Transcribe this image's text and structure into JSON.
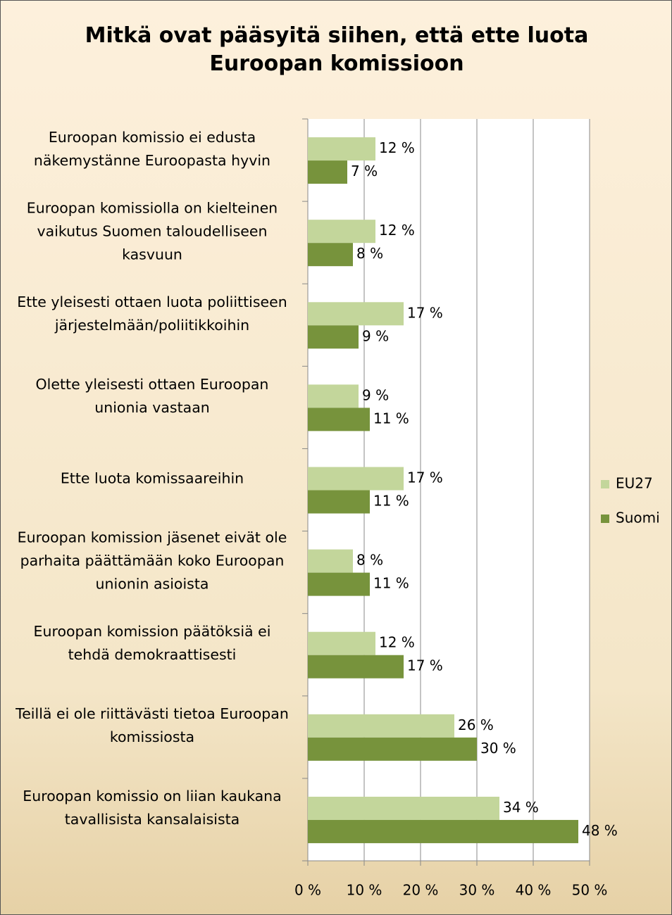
{
  "chart_data": {
    "type": "bar",
    "orientation": "horizontal",
    "title": "Mitkä ovat pääsyitä siihen, että ette luota Euroopan komissioon",
    "categories": [
      "Euroopan komissio ei edusta näkemystänne Euroopasta hyvin",
      "Euroopan komissiolla on kielteinen vaikutus Suomen taloudelliseen kasvuun",
      "Ette yleisesti ottaen luota poliittiseen järjestelmään/poliitikkoihin",
      "Olette yleisesti ottaen Euroopan unionia vastaan",
      "Ette luota komissaareihin",
      "Euroopan komission jäsenet eivät ole parhaita päättämään koko Euroopan unionin asioista",
      "Euroopan komission päätöksiä ei tehdä demokraattisesti",
      "Teillä ei ole riittävästi tietoa Euroopan komissiosta",
      "Euroopan komissio on liian kaukana tavallisista kansalaisista"
    ],
    "series": [
      {
        "name": "EU27",
        "color": "#c3d69b",
        "values": [
          12,
          12,
          17,
          9,
          17,
          8,
          12,
          26,
          34
        ],
        "value_labels": [
          "12 %",
          "12 %",
          "17 %",
          "9 %",
          "17 %",
          "8 %",
          "12 %",
          "26 %",
          "34 %"
        ]
      },
      {
        "name": "Suomi",
        "color": "#77933c",
        "values": [
          7,
          8,
          9,
          11,
          11,
          11,
          17,
          30,
          48
        ],
        "value_labels": [
          "7 %",
          "8 %",
          "9 %",
          "11 %",
          "11 %",
          "11 %",
          "17 %",
          "30 %",
          "48 %"
        ]
      }
    ],
    "xlim": [
      0,
      50
    ],
    "xticks": [
      {
        "value": 0,
        "label": "0 %"
      },
      {
        "value": 10,
        "label": "10 %"
      },
      {
        "value": 20,
        "label": "20 %"
      },
      {
        "value": 30,
        "label": "30 %"
      },
      {
        "value": 40,
        "label": "40 %"
      },
      {
        "value": 50,
        "label": "50 %"
      }
    ],
    "grid": true,
    "legend": "right"
  }
}
